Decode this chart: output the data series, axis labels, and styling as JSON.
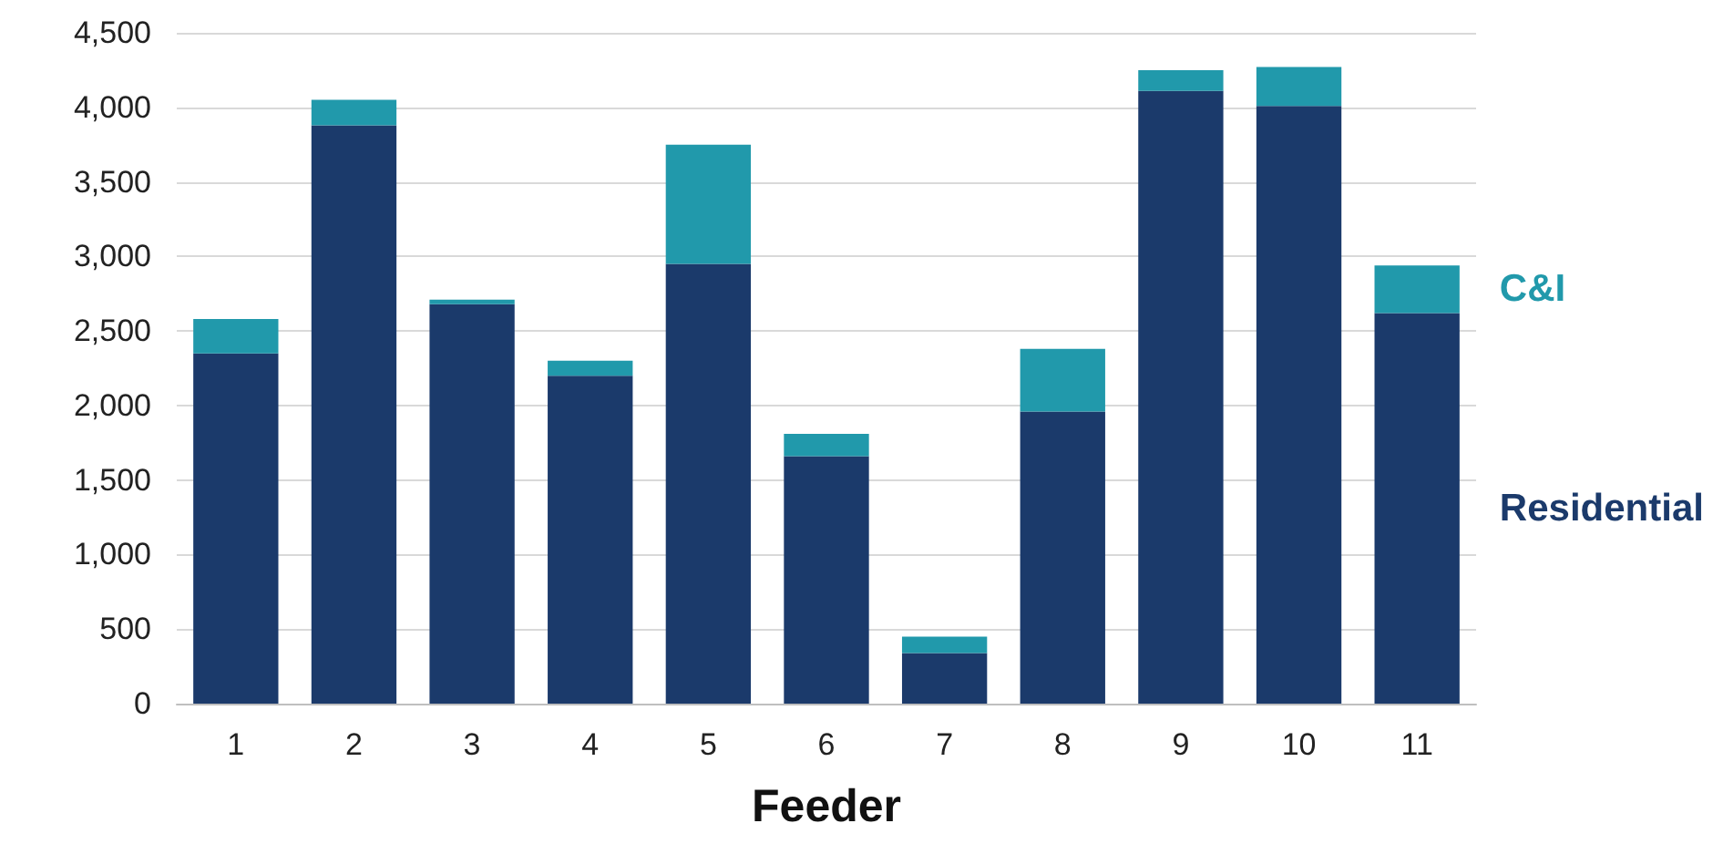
{
  "chart_data": {
    "type": "bar",
    "stacked": true,
    "xlabel": "Feeder",
    "categories": [
      "1",
      "2",
      "3",
      "4",
      "5",
      "6",
      "7",
      "8",
      "9",
      "10",
      "11"
    ],
    "series": [
      {
        "name": "Residential",
        "color": "#1b3a6b",
        "values": [
          2350,
          3880,
          2680,
          2200,
          2950,
          1660,
          340,
          1960,
          4110,
          4010,
          2620
        ]
      },
      {
        "name": "C&I",
        "color": "#2199ab",
        "values": [
          230,
          170,
          30,
          100,
          800,
          150,
          110,
          420,
          140,
          260,
          320
        ]
      }
    ],
    "ylim": [
      0,
      4500
    ],
    "yticks": [
      {
        "value": 0,
        "label": "0"
      },
      {
        "value": 500,
        "label": "500"
      },
      {
        "value": 1000,
        "label": "1,000"
      },
      {
        "value": 1500,
        "label": "1,500"
      },
      {
        "value": 2000,
        "label": "2,000"
      },
      {
        "value": 2500,
        "label": "2,500"
      },
      {
        "value": 3000,
        "label": "3,000"
      },
      {
        "value": 3500,
        "label": "3,500"
      },
      {
        "value": 4000,
        "label": "4,000"
      },
      {
        "value": 4500,
        "label": "4,500"
      }
    ],
    "grid": "y"
  }
}
